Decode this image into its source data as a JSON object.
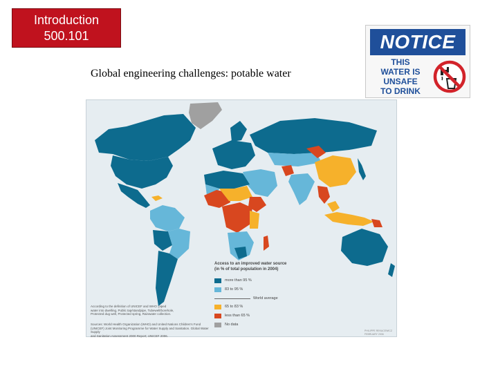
{
  "course": {
    "line1": "Introduction",
    "line2": "500.101"
  },
  "slide_title": "Global engineering challenges:  potable water",
  "notice_sign": {
    "header": "NOTICE",
    "lines": [
      "THIS",
      "WATER IS",
      "UNSAFE",
      "TO DRINK"
    ],
    "icon": "no-drinking-water-icon"
  },
  "map": {
    "legend_title_line1": "Access to an improved water source",
    "legend_title_line2": "(in % of total population in 2004)",
    "categories": [
      {
        "label": "more than 95 %",
        "color": "#0d6b8e"
      },
      {
        "label": "83 to 95 %",
        "color": "#66b7d9"
      },
      {
        "label": "65 to 83 %",
        "color": "#f6b12b"
      },
      {
        "label": "less than 65 %",
        "color": "#d8471f"
      },
      {
        "label": "No data",
        "color": "#a0a0a0"
      }
    ],
    "average_label": "World average",
    "definition_note": [
      "According to the definition of UNICEF and WHO: piped",
      "water into dwelling, Public tap/standpipe, Tubewell/borehole,",
      "Protected dug well, Protected spring, Rainwater collection."
    ],
    "sources_note": [
      "Sources: World Health Organization (WHO) and United Nations Children's Fund",
      "(UNICEF) Joint Monitoring Programme for Water Supply and Sanitation. Global Water Supply",
      "and Sanitation Assessment 2000 Report; UNICEF 2006."
    ],
    "credit": [
      "PHILIPPE REKACEWICZ",
      "FEBRUARY 2006"
    ]
  }
}
